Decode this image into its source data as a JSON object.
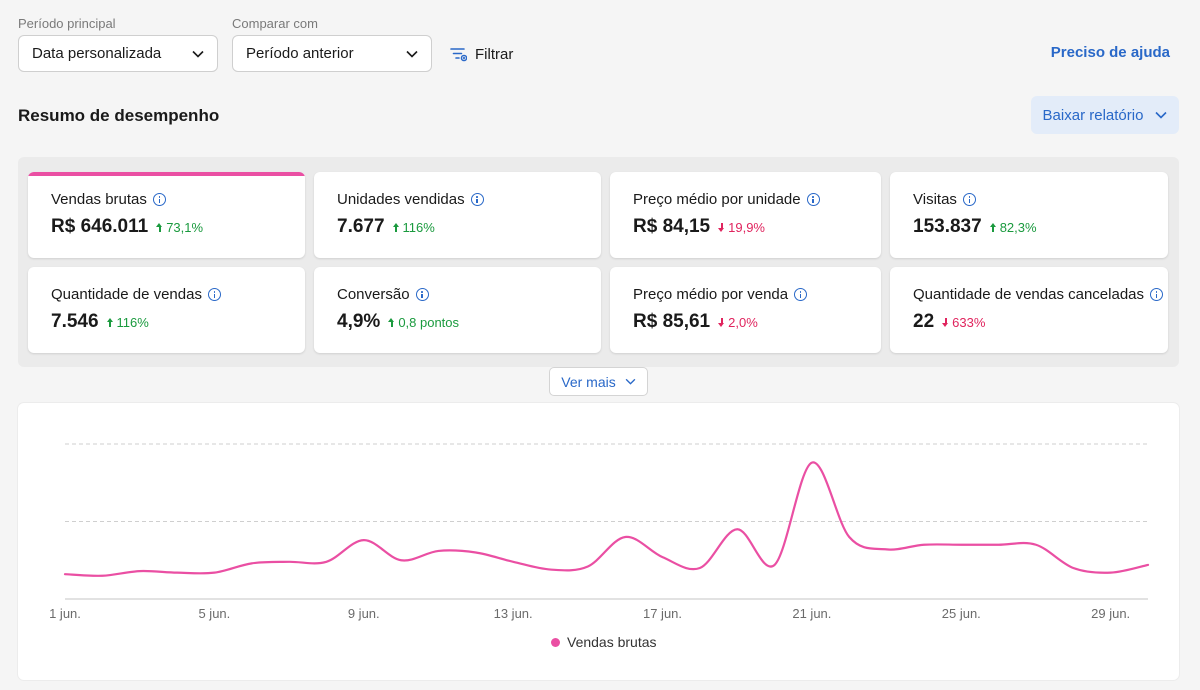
{
  "filters": {
    "main_period": {
      "label": "Período principal",
      "value": "Data personalizada"
    },
    "compare": {
      "label": "Comparar com",
      "value": "Período anterior"
    },
    "filter_label": "Filtrar"
  },
  "help_link": "Preciso de ajuda",
  "summary": {
    "title": "Resumo de desempenho",
    "download_label": "Baixar relatório"
  },
  "metrics": [
    {
      "label": "Vendas brutas",
      "value": "R$ 646.011",
      "delta": "73,1%",
      "trend": "up",
      "active": true
    },
    {
      "label": "Unidades vendidas",
      "value": "7.677",
      "delta": "116%",
      "trend": "up"
    },
    {
      "label": "Preço médio por unidade",
      "value": "R$ 84,15",
      "delta": "19,9%",
      "trend": "down"
    },
    {
      "label": "Visitas",
      "value": "153.837",
      "delta": "82,3%",
      "trend": "up"
    },
    {
      "label": "Quantidade de vendas",
      "value": "7.546",
      "delta": "116%",
      "trend": "up"
    },
    {
      "label": "Conversão",
      "value": "4,9%",
      "delta": "0,8 pontos",
      "trend": "up"
    },
    {
      "label": "Preço médio por venda",
      "value": "R$ 85,61",
      "delta": "2,0%",
      "trend": "down"
    },
    {
      "label": "Quantidade de vendas canceladas",
      "value": "22",
      "delta": "633%",
      "trend": "down"
    }
  ],
  "more_label": "Ver mais",
  "colors": {
    "accent": "#2968c8",
    "series": "#ea4fa3",
    "up": "#1a9a3e",
    "down": "#e0245e"
  },
  "chart_data": {
    "type": "line",
    "xlabel": "",
    "ylabel": "",
    "x_tick_labels": [
      "1 jun.",
      "5 jun.",
      "9 jun.",
      "13 jun.",
      "17 jun.",
      "21 jun.",
      "25 jun.",
      "29 jun."
    ],
    "x_tick_days": [
      1,
      5,
      9,
      13,
      17,
      21,
      25,
      29
    ],
    "ylim": [
      0,
      100
    ],
    "y_gridlines": [
      50,
      100
    ],
    "grid": true,
    "legend": "bottom-center",
    "series": [
      {
        "name": "Vendas brutas",
        "x": [
          1,
          2,
          3,
          4,
          5,
          6,
          7,
          8,
          9,
          10,
          11,
          12,
          13,
          14,
          15,
          16,
          17,
          18,
          19,
          20,
          21,
          22,
          23,
          24,
          25,
          26,
          27,
          28,
          29,
          30
        ],
        "y": [
          16,
          15,
          18,
          17,
          17,
          23,
          24,
          24,
          38,
          25,
          31,
          30,
          24,
          19,
          21,
          40,
          27,
          20,
          45,
          22,
          88,
          40,
          32,
          35,
          35,
          35,
          35,
          20,
          17,
          22
        ]
      }
    ]
  }
}
